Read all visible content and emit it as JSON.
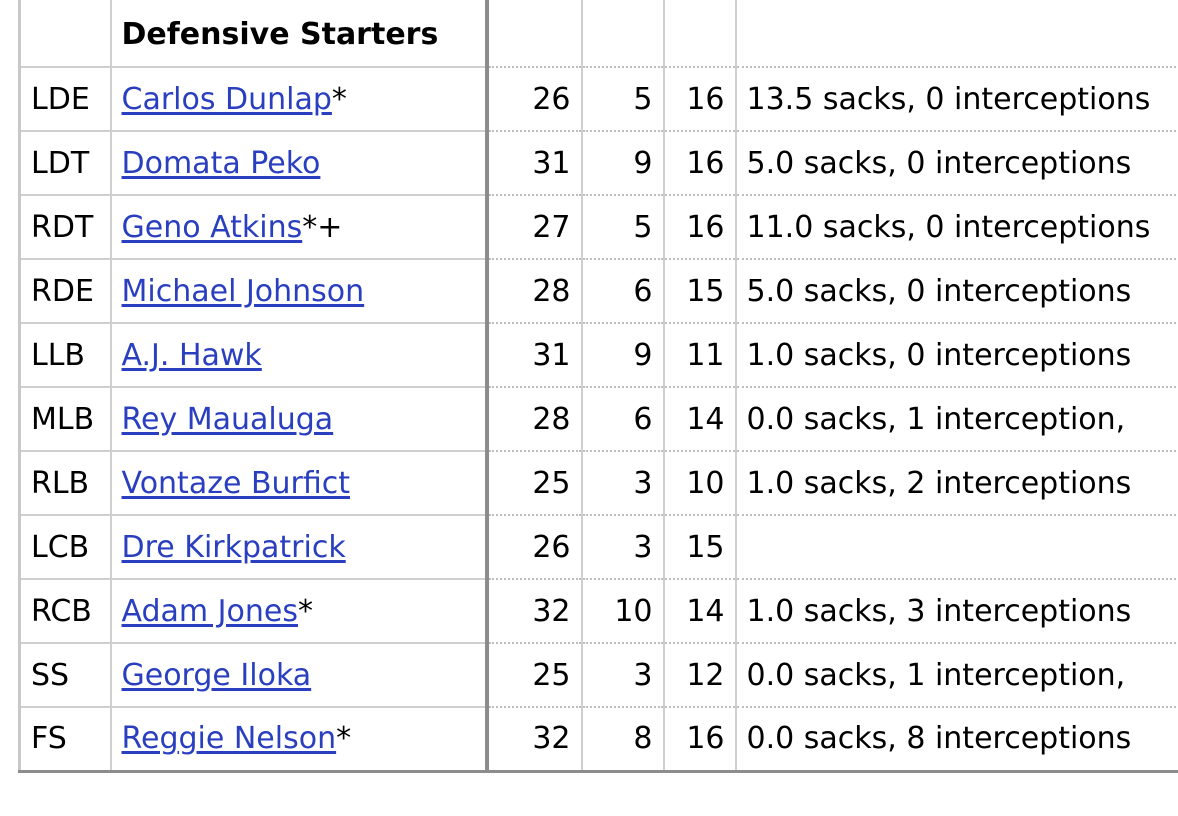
{
  "table": {
    "header": {
      "position": "",
      "section_title": "Defensive Starters",
      "age": "",
      "years": "",
      "games": "",
      "notes": ""
    },
    "rows": [
      {
        "pos": "LDE",
        "name": "Carlos Dunlap",
        "mark": "*",
        "age": "26",
        "yrs": "5",
        "g": "16",
        "notes": "13.5 sacks, 0 interceptions"
      },
      {
        "pos": "LDT",
        "name": "Domata Peko",
        "mark": "",
        "age": "31",
        "yrs": "9",
        "g": "16",
        "notes": "5.0 sacks, 0 interceptions"
      },
      {
        "pos": "RDT",
        "name": "Geno Atkins",
        "mark": "*+",
        "age": "27",
        "yrs": "5",
        "g": "16",
        "notes": "11.0 sacks, 0 interceptions"
      },
      {
        "pos": "RDE",
        "name": "Michael Johnson",
        "mark": "",
        "age": "28",
        "yrs": "6",
        "g": "15",
        "notes": "5.0 sacks, 0 interceptions"
      },
      {
        "pos": "LLB",
        "name": "A.J. Hawk",
        "mark": "",
        "age": "31",
        "yrs": "9",
        "g": "11",
        "notes": "1.0 sacks, 0 interceptions"
      },
      {
        "pos": "MLB",
        "name": "Rey Maualuga",
        "mark": "",
        "age": "28",
        "yrs": "6",
        "g": "14",
        "notes": "0.0 sacks, 1 interception,"
      },
      {
        "pos": "RLB",
        "name": "Vontaze Burfict",
        "mark": "",
        "age": "25",
        "yrs": "3",
        "g": "10",
        "notes": "1.0 sacks, 2 interceptions"
      },
      {
        "pos": "LCB",
        "name": "Dre Kirkpatrick",
        "mark": "",
        "age": "26",
        "yrs": "3",
        "g": "15",
        "notes": ""
      },
      {
        "pos": "RCB",
        "name": "Adam Jones",
        "mark": "*",
        "age": "32",
        "yrs": "10",
        "g": "14",
        "notes": "1.0 sacks, 3 interceptions"
      },
      {
        "pos": "SS",
        "name": "George Iloka",
        "mark": "",
        "age": "25",
        "yrs": "3",
        "g": "12",
        "notes": "0.0 sacks, 1 interception,"
      },
      {
        "pos": "FS",
        "name": "Reggie Nelson",
        "mark": "*",
        "age": "32",
        "yrs": "8",
        "g": "16",
        "notes": "0.0 sacks, 8 interceptions"
      }
    ]
  },
  "colors": {
    "link": "#2a3fbf",
    "grid": "#cfcfcf",
    "strong_border": "#8c8c8c"
  }
}
